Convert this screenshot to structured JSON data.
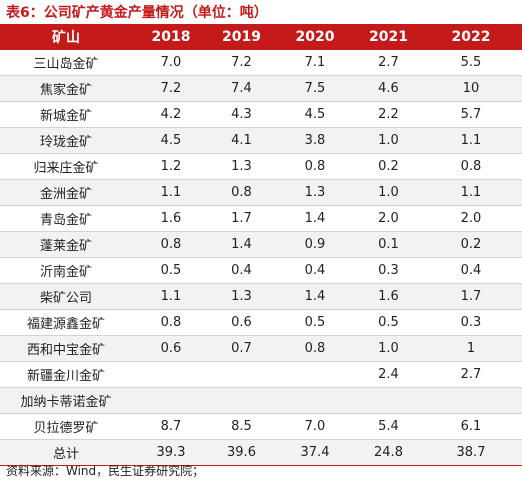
{
  "title": "表6：公司矿产黄金产量情况（单位：吨）",
  "headers": [
    "矿山",
    "2018",
    "2019",
    "2020",
    "2021",
    "2022"
  ],
  "rows": [
    [
      "三山岛金矿",
      "7.0",
      "7.2",
      "7.1",
      "2.7",
      "5.5"
    ],
    [
      "焦家金矿",
      "7.2",
      "7.4",
      "7.5",
      "4.6",
      "10"
    ],
    [
      "新城金矿",
      "4.2",
      "4.3",
      "4.5",
      "2.2",
      "5.7"
    ],
    [
      "玲珑金矿",
      "4.5",
      "4.1",
      "3.8",
      "1.0",
      "1.1"
    ],
    [
      "归来庄金矿",
      "1.2",
      "1.3",
      "0.8",
      "0.2",
      "0.8"
    ],
    [
      "金洲金矿",
      "1.1",
      "0.8",
      "1.3",
      "1.0",
      "1.1"
    ],
    [
      "青岛金矿",
      "1.6",
      "1.7",
      "1.4",
      "2.0",
      "2.0"
    ],
    [
      "蓬莱金矿",
      "0.8",
      "1.4",
      "0.9",
      "0.1",
      "0.2"
    ],
    [
      "沂南金矿",
      "0.5",
      "0.4",
      "0.4",
      "0.3",
      "0.4"
    ],
    [
      "柴矿公司",
      "1.1",
      "1.3",
      "1.4",
      "1.6",
      "1.7"
    ],
    [
      "福建源鑫金矿",
      "0.8",
      "0.6",
      "0.5",
      "0.5",
      "0.3"
    ],
    [
      "西和中宝金矿",
      "0.6",
      "0.7",
      "0.8",
      "1.0",
      "1"
    ],
    [
      "新疆金川金矿",
      "",
      "",
      "",
      "2.4",
      "2.7"
    ],
    [
      "加纳卡蒂诺金矿",
      "",
      "",
      "",
      "",
      ""
    ],
    [
      "贝拉德罗矿",
      "8.7",
      "8.5",
      "7.0",
      "5.4",
      "6.1"
    ]
  ],
  "total": [
    "总计",
    "39.3",
    "39.6",
    "37.4",
    "24.8",
    "38.7"
  ],
  "source": "资料来源：Wind，民生证券研究院；",
  "colors": {
    "accent": "#c41a1a",
    "shade": "#f2f2f2"
  }
}
